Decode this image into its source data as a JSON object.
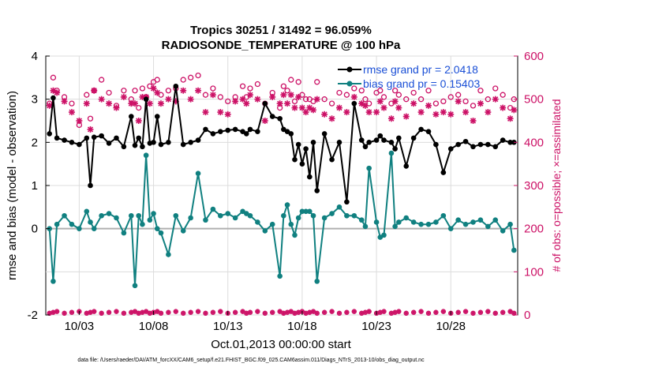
{
  "chart_data": {
    "type": "line",
    "title_line1": "Tropics 30251 / 31492 = 96.059%",
    "title_line2": "RADIOSONDE_TEMPERATURE @ 100 hPa",
    "xlabel": "Oct.01,2013 00:00:00 start",
    "ylabel_left": "rmse and bias (model - observation)",
    "ylabel_right": "# of obs: o=possible; ×=assimilated",
    "ylim_left": [
      -2,
      4
    ],
    "ylim_right": [
      0,
      600
    ],
    "yticks_left": [
      "-2",
      "0",
      "1",
      "2",
      "3",
      "4"
    ],
    "yticks_left_values": [
      -2,
      0,
      1,
      2,
      3,
      4
    ],
    "yticks_right": [
      "0",
      "100",
      "200",
      "300",
      "400",
      "500",
      "600"
    ],
    "yticks_right_values": [
      0,
      100,
      200,
      300,
      400,
      500,
      600
    ],
    "xlim": [
      0.75,
      32.5
    ],
    "xticks": [
      "10/03",
      "10/08",
      "10/13",
      "10/18",
      "10/23",
      "10/28"
    ],
    "xticks_values": [
      3,
      8,
      13,
      18,
      23,
      28
    ],
    "grid": true,
    "legend_position": "top-right",
    "x": [
      1.0,
      1.25,
      1.5,
      2.0,
      2.5,
      3.0,
      3.5,
      3.75,
      4.0,
      4.5,
      5.0,
      5.5,
      6.0,
      6.5,
      6.75,
      7.0,
      7.25,
      7.5,
      7.75,
      8.0,
      8.25,
      8.5,
      9.0,
      9.5,
      10.0,
      10.5,
      11.0,
      11.5,
      12.0,
      12.5,
      13.0,
      13.5,
      14.0,
      14.25,
      14.5,
      15.0,
      15.5,
      16.0,
      16.5,
      16.75,
      17.0,
      17.25,
      17.5,
      17.75,
      18.0,
      18.25,
      18.5,
      18.75,
      19.0,
      19.5,
      20.0,
      20.5,
      21.0,
      21.5,
      22.0,
      22.25,
      22.5,
      23.0,
      23.25,
      23.5,
      24.0,
      24.25,
      24.5,
      25.0,
      25.5,
      26.0,
      26.5,
      27.0,
      27.5,
      28.0,
      28.5,
      29.0,
      29.5,
      30.0,
      30.5,
      31.0,
      31.5,
      32.0,
      32.25
    ],
    "series": [
      {
        "name": "rmse grand pr = 2.0418",
        "color": "#000000",
        "values": [
          2.2,
          3.03,
          2.1,
          2.05,
          2.0,
          1.95,
          2.1,
          1.0,
          2.12,
          2.15,
          1.98,
          2.1,
          1.9,
          2.6,
          1.93,
          2.1,
          1.9,
          3.0,
          1.98,
          2.0,
          2.6,
          1.95,
          2.0,
          3.3,
          1.95,
          2.0,
          2.05,
          2.3,
          2.2,
          2.25,
          2.28,
          2.3,
          2.25,
          2.2,
          2.3,
          2.25,
          2.9,
          2.6,
          2.55,
          2.3,
          2.25,
          2.2,
          1.6,
          1.95,
          1.5,
          1.85,
          1.2,
          2.0,
          0.88,
          2.2,
          1.6,
          2.0,
          0.62,
          2.9,
          2.05,
          1.9,
          2.0,
          2.05,
          2.15,
          2.05,
          2.0,
          1.85,
          2.1,
          1.45,
          2.1,
          2.3,
          2.25,
          1.95,
          1.3,
          1.85,
          1.95,
          2.02,
          1.9,
          1.95,
          1.95,
          1.9,
          2.05,
          2.0,
          2.0
        ],
        "ylim": [
          -2,
          4
        ],
        "axis": "left"
      },
      {
        "name": "bias grand pr = 0.15403",
        "color": "#108080",
        "values": [
          0.0,
          -1.22,
          0.1,
          0.3,
          0.1,
          0.0,
          0.4,
          0.15,
          0.0,
          0.3,
          0.35,
          0.25,
          -0.1,
          0.3,
          -1.32,
          0.3,
          0.1,
          1.7,
          0.2,
          0.35,
          0.0,
          -0.1,
          -0.6,
          0.3,
          -0.05,
          0.25,
          1.28,
          0.2,
          0.45,
          0.3,
          0.35,
          0.25,
          0.4,
          0.35,
          0.3,
          0.15,
          -0.05,
          0.1,
          -1.1,
          0.3,
          0.55,
          0.1,
          -0.15,
          0.25,
          0.4,
          0.4,
          0.4,
          0.3,
          -1.22,
          0.25,
          0.35,
          0.5,
          0.3,
          0.3,
          0.2,
          0.05,
          1.4,
          0.15,
          -0.2,
          -0.15,
          1.75,
          0.05,
          0.15,
          0.25,
          0.15,
          0.1,
          0.1,
          0.15,
          0.3,
          0.0,
          0.2,
          0.1,
          0.15,
          0.2,
          0.05,
          0.2,
          -0.05,
          0.1,
          -0.5
        ],
        "ylim": [
          -2,
          4
        ],
        "axis": "left"
      },
      {
        "name": "possible",
        "color": "#cc1166",
        "marker": "o",
        "axis": "right",
        "values": [
          490,
          550,
          520,
          505,
          490,
          440,
          510,
          455,
          520,
          545,
          515,
          485,
          520,
          500,
          520,
          480,
          525,
          505,
          530,
          540,
          545,
          510,
          520,
          525,
          545,
          550,
          555,
          510,
          525,
          505,
          495,
          505,
          530,
          505,
          525,
          535,
          490,
          515,
          480,
          530,
          520,
          545,
          495,
          540,
          510,
          500,
          500,
          495,
          540,
          500,
          490,
          515,
          510,
          525,
          520,
          500,
          490,
          515,
          520,
          505,
          490,
          520,
          510,
          500,
          515,
          500,
          520,
          490,
          495,
          505,
          510,
          495,
          485,
          520,
          500,
          525,
          510,
          480,
          500
        ],
        "assimilated": [
          485,
          520,
          515,
          495,
          470,
          450,
          490,
          430,
          520,
          500,
          490,
          480,
          505,
          490,
          490,
          450,
          505,
          505,
          490,
          525,
          515,
          490,
          500,
          495,
          520,
          500,
          520,
          470,
          510,
          470,
          465,
          495,
          500,
          490,
          510,
          500,
          450,
          505,
          490,
          510,
          490,
          510,
          480,
          505,
          480,
          470,
          480,
          475,
          500,
          465,
          455,
          480,
          470,
          505,
          490,
          485,
          470,
          470,
          495,
          480,
          455,
          495,
          480,
          460,
          490,
          470,
          485,
          465,
          470,
          465,
          495,
          470,
          450,
          490,
          470,
          500,
          480,
          455,
          475
        ]
      }
    ],
    "bottom_possible_counts": "near zero (0 to 15)"
  },
  "legend": {
    "rmse": "rmse grand pr = 2.0418",
    "bias": "bias grand pr = 0.15403"
  },
  "footnote": "data file: /Users/raeder/DAI/ATM_forcXX/CAM6_setup/f.e21.FHIST_BGC.f09_025.CAM6assim.011/Diags_NTrS_2013-10/obs_diag_output.nc"
}
